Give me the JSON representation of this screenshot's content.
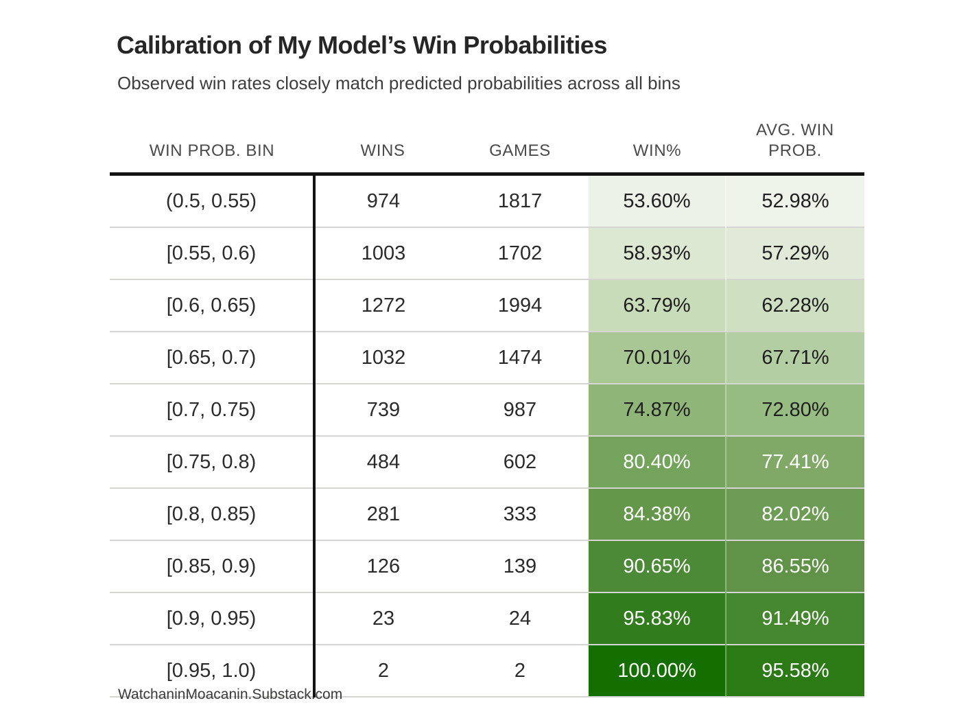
{
  "header": {
    "title": "Calibration of My Model’s Win Probabilities",
    "subtitle": "Observed win rates closely match predicted probabilities across all bins"
  },
  "table": {
    "columns": [
      "WIN PROB. BIN",
      "WINS",
      "GAMES",
      "WIN%",
      "AVG. WIN PROB."
    ],
    "rows": [
      {
        "bin": "(0.5, 0.55)",
        "wins": "974",
        "games": "1817",
        "win_pct": "53.60%",
        "avg_prob": "52.98%",
        "win_bg": "#edf2e8",
        "avg_bg": "#eef3ea",
        "text": "#1e1e1e"
      },
      {
        "bin": "[0.55, 0.6)",
        "wins": "1003",
        "games": "1702",
        "win_pct": "58.93%",
        "avg_prob": "57.29%",
        "win_bg": "#dce8d2",
        "avg_bg": "#e1ead8",
        "text": "#1e1e1e"
      },
      {
        "bin": "[0.6, 0.65)",
        "wins": "1272",
        "games": "1994",
        "win_pct": "63.79%",
        "avg_prob": "62.28%",
        "win_bg": "#c8dcba",
        "avg_bg": "#cfe0c2",
        "text": "#1e1e1e"
      },
      {
        "bin": "[0.65, 0.7)",
        "wins": "1032",
        "games": "1474",
        "win_pct": "70.01%",
        "avg_prob": "67.71%",
        "win_bg": "#a9c795",
        "avg_bg": "#b4cea3",
        "text": "#1e1e1e"
      },
      {
        "bin": "[0.7, 0.75)",
        "wins": "739",
        "games": "987",
        "win_pct": "74.87%",
        "avg_prob": "72.80%",
        "win_bg": "#8fb678",
        "avg_bg": "#97bc81",
        "text": "#1e1e1e"
      },
      {
        "bin": "[0.75, 0.8)",
        "wins": "484",
        "games": "602",
        "win_pct": "80.40%",
        "avg_prob": "77.41%",
        "win_bg": "#74a35c",
        "avg_bg": "#80a967",
        "text": "#ffffff"
      },
      {
        "bin": "[0.8, 0.85)",
        "wins": "281",
        "games": "333",
        "win_pct": "84.38%",
        "avg_prob": "82.02%",
        "win_bg": "#649749",
        "avg_bg": "#6d9c54",
        "text": "#ffffff"
      },
      {
        "bin": "[0.85, 0.9)",
        "wins": "126",
        "games": "139",
        "win_pct": "90.65%",
        "avg_prob": "86.55%",
        "win_bg": "#4d8a37",
        "avg_bg": "#609247",
        "text": "#ffffff"
      },
      {
        "bin": "[0.9, 0.95)",
        "wins": "23",
        "games": "24",
        "win_pct": "95.83%",
        "avg_prob": "91.49%",
        "win_bg": "#317d1d",
        "avg_bg": "#45872f",
        "text": "#ffffff"
      },
      {
        "bin": "[0.95, 1.0)",
        "wins": "2",
        "games": "2",
        "win_pct": "100.00%",
        "avg_prob": "95.58%",
        "win_bg": "#156f00",
        "avg_bg": "#2b7a16",
        "text": "#ffffff"
      }
    ]
  },
  "footer": {
    "source": "WatchaninMoacanin.Substack.com"
  },
  "colors": {
    "heat_min": "#edf2e8",
    "heat_max": "#156f00",
    "header_rule": "#141414",
    "row_separator": "#d5d5d3"
  },
  "chart_data": {
    "type": "table",
    "title": "Calibration of My Model’s Win Probabilities",
    "subtitle": "Observed win rates closely match predicted probabilities across all bins",
    "columns": [
      "WIN PROB. BIN",
      "WINS",
      "GAMES",
      "WIN%",
      "AVG. WIN PROB."
    ],
    "rows": [
      [
        "(0.5, 0.55)",
        974,
        1817,
        53.6,
        52.98
      ],
      [
        "[0.55, 0.6)",
        1003,
        1702,
        58.93,
        57.29
      ],
      [
        "[0.6, 0.65)",
        1272,
        1994,
        63.79,
        62.28
      ],
      [
        "[0.65, 0.7)",
        1032,
        1474,
        70.01,
        67.71
      ],
      [
        "[0.7, 0.75)",
        739,
        987,
        74.87,
        72.8
      ],
      [
        "[0.75, 0.8)",
        484,
        602,
        80.4,
        77.41
      ],
      [
        "[0.8, 0.85)",
        281,
        333,
        84.38,
        82.02
      ],
      [
        "[0.85, 0.9)",
        126,
        139,
        90.65,
        86.55
      ],
      [
        "[0.9, 0.95)",
        23,
        24,
        95.83,
        91.49
      ],
      [
        "[0.95, 1.0)",
        2,
        2,
        100.0,
        95.58
      ]
    ],
    "units": {
      "WIN%": "percent",
      "AVG. WIN PROB.": "percent"
    },
    "layout_hints": {
      "heatmap_columns": [
        "WIN%",
        "AVG. WIN PROB."
      ],
      "color_encoding": "green shade darkens as percentage increases",
      "grid": "horizontal row separators, thick rule under header, vertical rule after first column"
    },
    "source": "WatchaninMoacanin.Substack.com"
  }
}
